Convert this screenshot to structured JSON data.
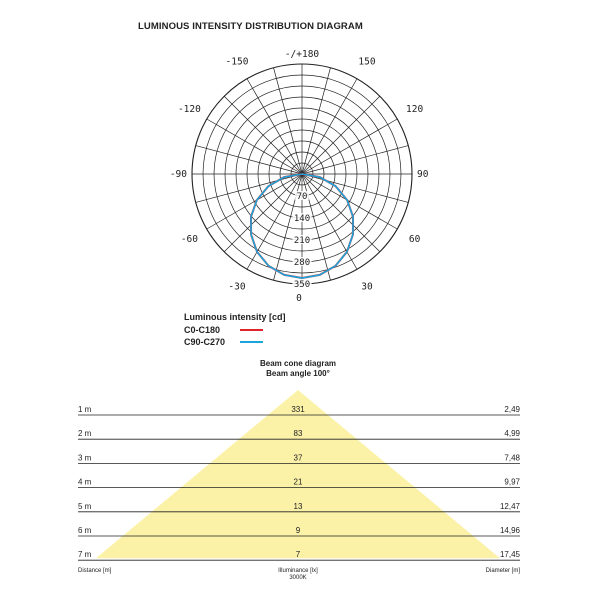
{
  "title": "LUMINOUS INTENSITY DISTRIBUTION DIAGRAM",
  "polar": {
    "angle_labels": [
      {
        "angle": 180,
        "text": "-/+180"
      },
      {
        "angle": -150,
        "text": "-150"
      },
      {
        "angle": 150,
        "text": "150"
      },
      {
        "angle": -120,
        "text": "-120"
      },
      {
        "angle": 120,
        "text": "120"
      },
      {
        "angle": -90,
        "text": "-90"
      },
      {
        "angle": 90,
        "text": "90"
      },
      {
        "angle": -60,
        "text": "-60"
      },
      {
        "angle": 60,
        "text": "60"
      },
      {
        "angle": -30,
        "text": "-30"
      },
      {
        "angle": 30,
        "text": "30"
      },
      {
        "angle": 0,
        "text": "0"
      }
    ],
    "radial_max": 350,
    "radial_labels": [
      {
        "value": 70,
        "text": "70"
      },
      {
        "value": 140,
        "text": "140"
      },
      {
        "value": 210,
        "text": "210"
      },
      {
        "value": 280,
        "text": "280"
      },
      {
        "value": 350,
        "text": "350"
      }
    ],
    "legend_title": "Luminous intensity [cd]",
    "series": [
      {
        "name": "C0-C180",
        "color": "#e0242b",
        "curve": [
          [
            0,
            331
          ],
          [
            10,
            326
          ],
          [
            20,
            311
          ],
          [
            30,
            286
          ],
          [
            40,
            252
          ],
          [
            50,
            212
          ],
          [
            60,
            166
          ],
          [
            70,
            114
          ],
          [
            80,
            58
          ],
          [
            90,
            0
          ]
        ]
      },
      {
        "name": "C90-C270",
        "color": "#1aa6dc",
        "curve": [
          [
            0,
            331
          ],
          [
            10,
            326
          ],
          [
            20,
            311
          ],
          [
            30,
            286
          ],
          [
            40,
            252
          ],
          [
            50,
            212
          ],
          [
            60,
            166
          ],
          [
            70,
            114
          ],
          [
            80,
            58
          ],
          [
            90,
            0
          ]
        ]
      }
    ]
  },
  "beam": {
    "title": "Beam cone diagram",
    "subtitle": "Beam angle 100°",
    "rows": [
      {
        "distance": "1 m",
        "illuminance": "331",
        "diameter": "2,49"
      },
      {
        "distance": "2 m",
        "illuminance": "83",
        "diameter": "4,99"
      },
      {
        "distance": "3 m",
        "illuminance": "37",
        "diameter": "7,48"
      },
      {
        "distance": "4 m",
        "illuminance": "21",
        "diameter": "9,97"
      },
      {
        "distance": "5 m",
        "illuminance": "13",
        "diameter": "12,47"
      },
      {
        "distance": "6 m",
        "illuminance": "9",
        "diameter": "14,96"
      },
      {
        "distance": "7 m",
        "illuminance": "7",
        "diameter": "17,45"
      }
    ],
    "axis_left": "Distance [m]",
    "axis_center": "Illuminance [lx]",
    "axis_center_sub": "3000K",
    "axis_right": "Diameter [m]",
    "cone_color": "#fbf2a8"
  }
}
